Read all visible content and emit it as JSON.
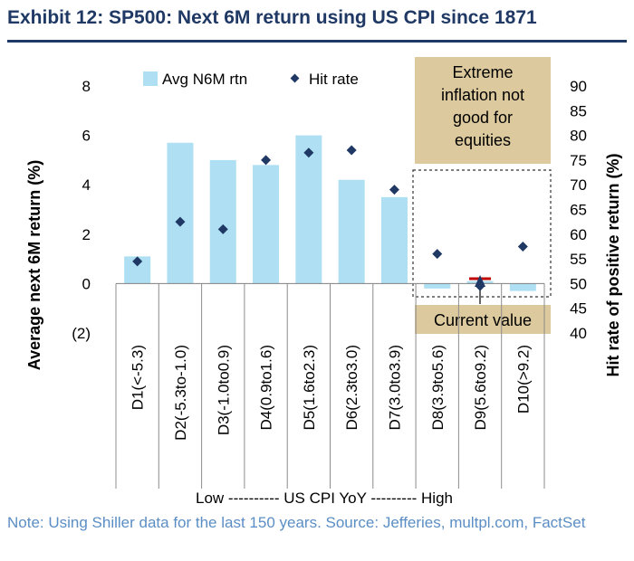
{
  "title": "Exhibit 12: SP500: Next 6M return using US CPI since 1871",
  "note": "Note: Using Shiller data for the last 150 years. Source: Jefferies, multpl.com, FactSet",
  "colors": {
    "bar": "#aedff2",
    "marker": "#1f3864",
    "title": "#1f3864",
    "note": "#5b8ec4",
    "callout": "#dcc99d",
    "current_marker": "#c00000"
  },
  "chart_data": {
    "type": "bar",
    "title": "Exhibit 12: SP500: Next 6M return using US CPI since 1871",
    "categories": [
      "D1(<-5.3)",
      "D2(-5.3to-1.0)",
      "D3(-1.0to0.9)",
      "D4(0.9to1.6)",
      "D5(1.6to2.3)",
      "D6(2.3to3.0)",
      "D7(3.0to3.9)",
      "D8(3.9to5.6)",
      "D9(5.6to9.2)",
      "D10(>9.2)"
    ],
    "series": [
      {
        "name": "Avg N6M rtn",
        "type": "bar",
        "axis": "left",
        "values": [
          1.1,
          5.7,
          5.0,
          4.8,
          6.0,
          4.2,
          3.5,
          -0.2,
          0.1,
          -0.3
        ]
      },
      {
        "name": "Hit rate",
        "type": "scatter",
        "axis": "right",
        "values": [
          54.5,
          62.5,
          61.0,
          75.0,
          76.5,
          77.0,
          69.0,
          56.0,
          49.5,
          57.5
        ]
      }
    ],
    "ylabel": "Average next 6M return (%)",
    "y2label": "Hit rate of positive return (%)",
    "xlabel": "Low ---------- US CPI YoY --------- High",
    "ylim": [
      -2,
      8
    ],
    "y2lim": [
      40,
      90
    ],
    "yticks": [
      "(2)",
      "0",
      "2",
      "4",
      "6",
      "8"
    ],
    "y2ticks": [
      "40",
      "45",
      "50",
      "55",
      "60",
      "65",
      "70",
      "75",
      "80",
      "85",
      "90"
    ],
    "legend": {
      "position": "top",
      "entries": [
        "Avg N6M rtn",
        "Hit rate"
      ]
    },
    "annotations": {
      "callout_lines": [
        "Extreme",
        "inflation not",
        "good for",
        "equities"
      ],
      "current_label": "Current value",
      "current_category": "D9(5.6to9.2)",
      "current_value": 0.2,
      "highlight_categories": [
        "D8(3.9to5.6)",
        "D9(5.6to9.2)",
        "D10(>9.2)"
      ]
    },
    "grid": false
  }
}
